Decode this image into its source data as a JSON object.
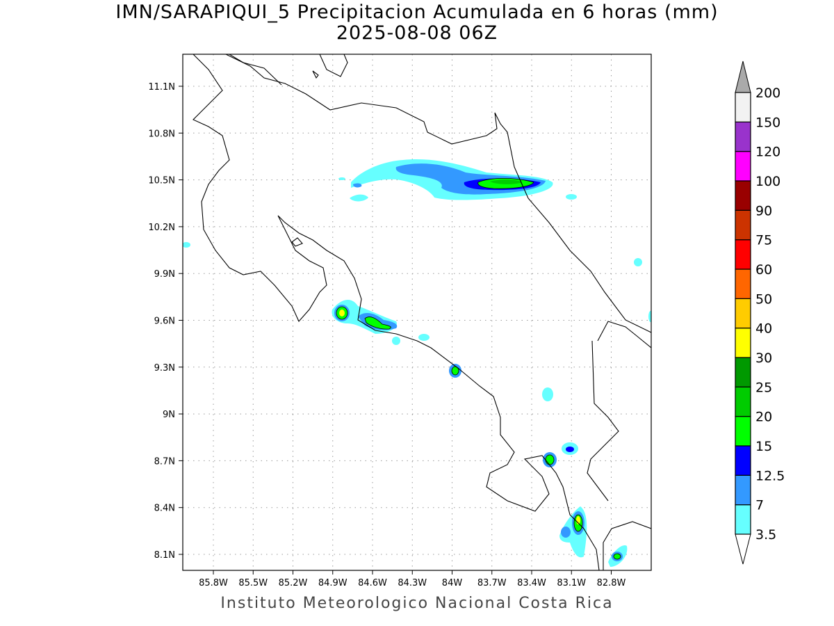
{
  "title": {
    "line1": "IMN/SARAPIQUI_5 Precipitacion Acumulada en 6 horas (mm)",
    "line2": "2025-08-08 06Z"
  },
  "map": {
    "lon_labels": [
      "85.8W",
      "85.5W",
      "85.2W",
      "84.9W",
      "84.6W",
      "84.3W",
      "84W",
      "83.7W",
      "83.4W",
      "83.1W",
      "82.8W"
    ],
    "lat_labels": [
      "11.1N",
      "10.8N",
      "10.5N",
      "10.2N",
      "9.9N",
      "9.6N",
      "9.3N",
      "9N",
      "8.7N",
      "8.4N",
      "8.1N"
    ],
    "coastline_color": "#000000"
  },
  "colorbar": {
    "levels": [
      "3.5",
      "7",
      "12.5",
      "15",
      "20",
      "25",
      "30",
      "40",
      "50",
      "60",
      "75",
      "90",
      "100",
      "120",
      "150",
      "200"
    ],
    "colors": [
      "#66ffff",
      "#3399ff",
      "#0000ff",
      "#00ff00",
      "#00cc00",
      "#009900",
      "#ffff00",
      "#ffcc00",
      "#ff6600",
      "#ff0000",
      "#cc3300",
      "#990000",
      "#ff00ff",
      "#9933cc",
      "#f2f2f2"
    ],
    "over_color": "#aaaaaa",
    "under_color": "#ffffff"
  },
  "footer": "Instituto Meteorologico Nacional Costa Rica"
}
